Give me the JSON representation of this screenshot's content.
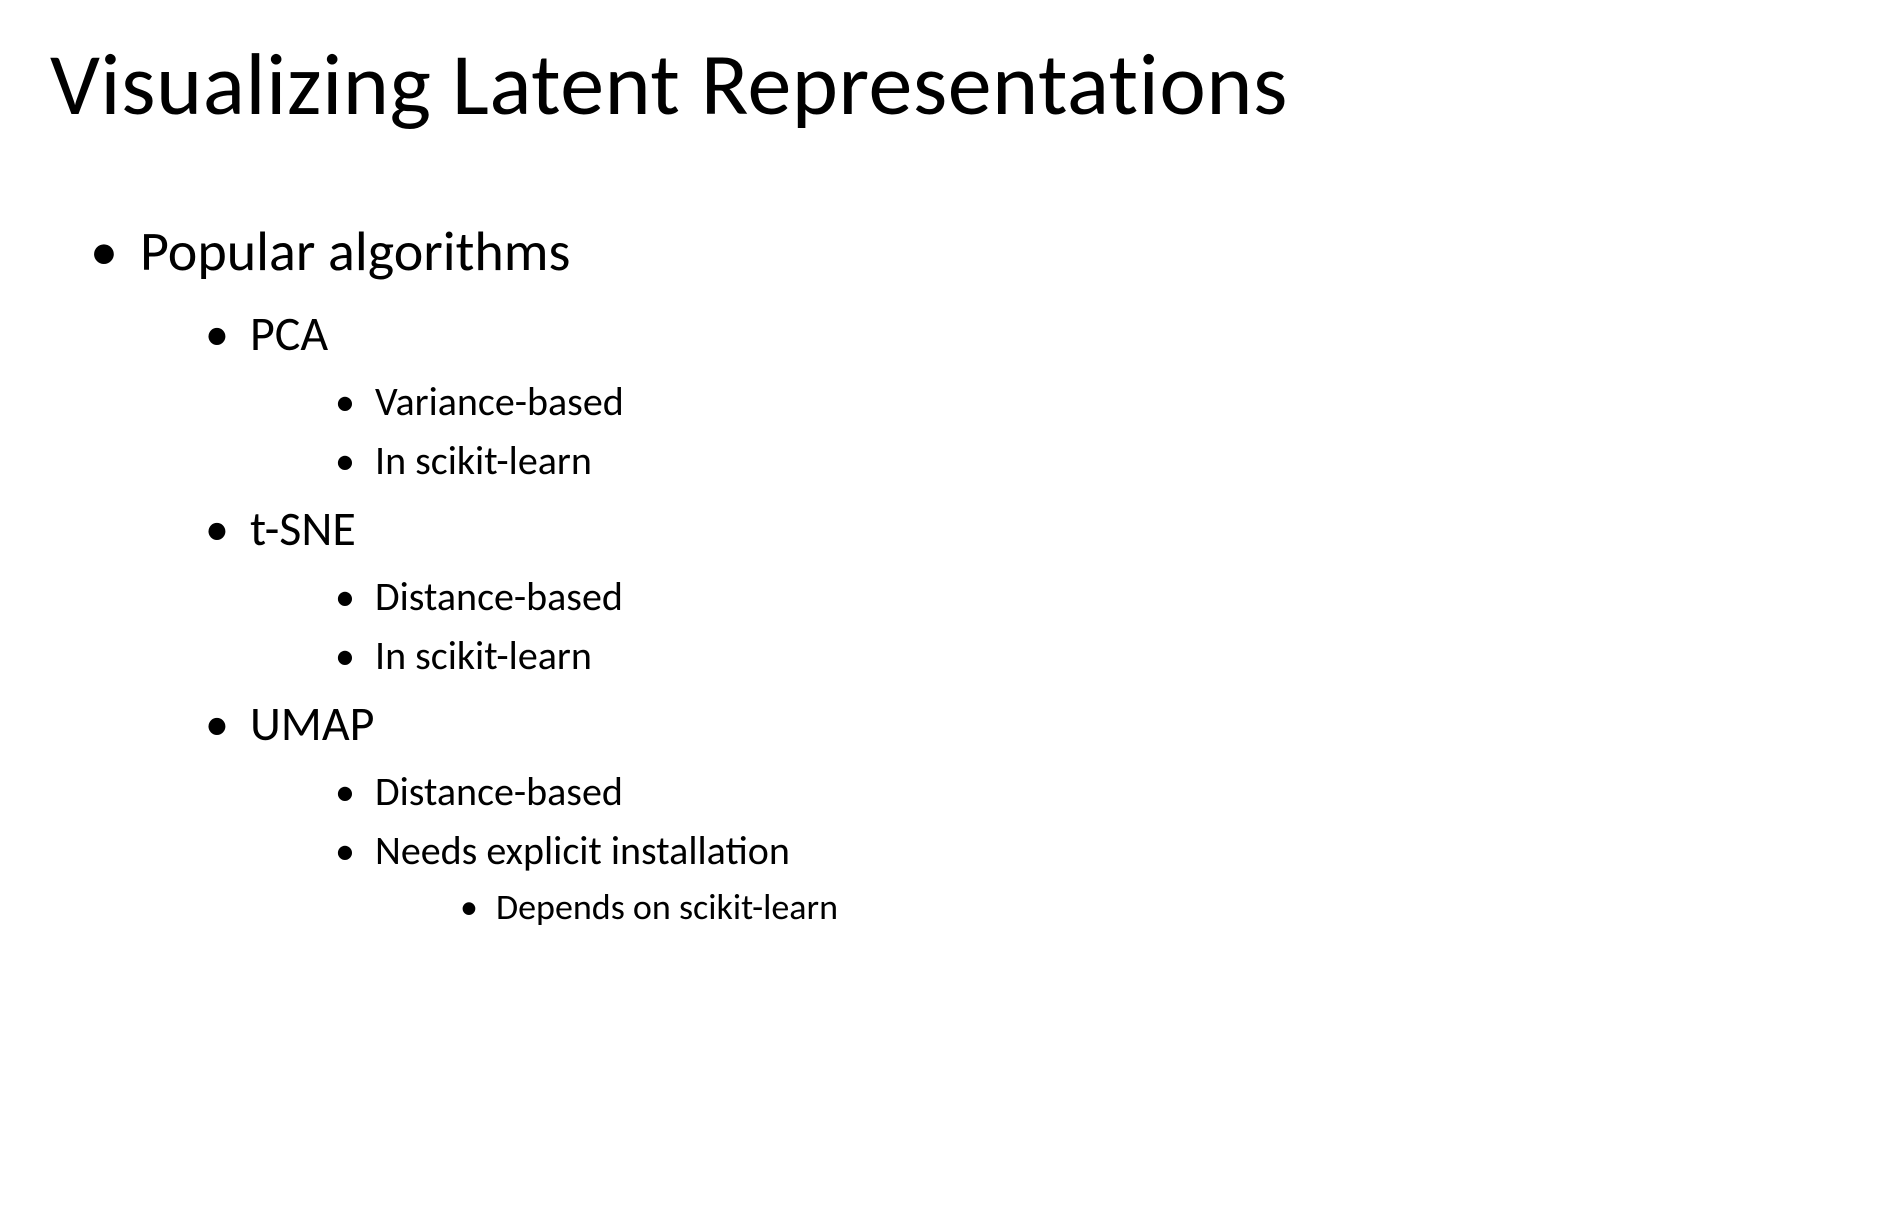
{
  "title": "Visualizing Latent Representations",
  "bullets": {
    "level1_item0": "Popular algorithms",
    "pca": {
      "name": "PCA",
      "sub0": "Variance-based",
      "sub1": "In scikit-learn"
    },
    "tsne": {
      "name": "t-SNE",
      "sub0": "Distance-based",
      "sub1": "In scikit-learn"
    },
    "umap": {
      "name": "UMAP",
      "sub0": "Distance-based",
      "sub1": "Needs explicit installation",
      "sub1_sub0": "Depends on scikit-learn"
    }
  },
  "styling": {
    "background_color": "#ffffff",
    "text_color": "#000000",
    "font_family": "Calibri",
    "title_fontsize": 88,
    "title_fontweight": 400,
    "level1_fontsize": 56,
    "level2_fontsize": 48,
    "level3_fontsize": 40,
    "level4_fontsize": 36,
    "bullet_char": "•",
    "slide_width": 1878,
    "slide_height": 1206
  }
}
